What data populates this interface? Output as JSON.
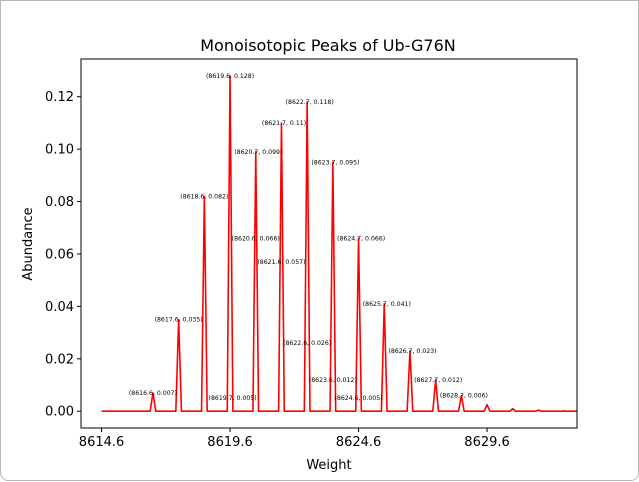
{
  "chart_data": {
    "type": "line",
    "title": "Monoisotopic Peaks of Ub-G76N",
    "xlabel": "Weight",
    "ylabel": "Abundance",
    "xlim": [
      8613.8,
      8633.1
    ],
    "ylim": [
      -0.0064,
      0.1344
    ],
    "x_ticks": [
      8614.6,
      8619.6,
      8624.6,
      8629.6
    ],
    "x_tick_labels": [
      "8614.6",
      "8619.6",
      "8624.6",
      "8629.6"
    ],
    "y_ticks": [
      0.0,
      0.02,
      0.04,
      0.06,
      0.08,
      0.1,
      0.12
    ],
    "y_tick_labels": [
      "0.00",
      "0.02",
      "0.04",
      "0.06",
      "0.08",
      "0.10",
      "0.12"
    ],
    "grid": false,
    "line_color": "#ff0000",
    "series": [
      {
        "x": [
          8616.6,
          8617.6,
          8618.6,
          8619.6,
          8620.6,
          8621.6,
          8622.6,
          8623.6,
          8624.6,
          8625.6,
          8626.6,
          8627.6,
          8628.6,
          8629.6,
          8630.6,
          8631.6,
          8632.6
        ],
        "values": [
          0.007,
          0.035,
          0.082,
          0.128,
          0.099,
          0.11,
          0.118,
          0.095,
          0.066,
          0.041,
          0.023,
          0.012,
          0.006,
          0.0025,
          0.001,
          0.0004,
          0.0001
        ]
      }
    ],
    "annotations": [
      {
        "text": "(8616.6, 0.007)",
        "x": 8616.6,
        "y": 0.007
      },
      {
        "text": "(8617.6, 0.035)",
        "x": 8617.6,
        "y": 0.035
      },
      {
        "text": "(8618.6, 0.082)",
        "x": 8618.6,
        "y": 0.082
      },
      {
        "text": "(8619.6, 0.128)",
        "x": 8619.6,
        "y": 0.128
      },
      {
        "text": "(8619.7, 0.005)",
        "x": 8619.7,
        "y": 0.005
      },
      {
        "text": "(8620.7, 0.099)",
        "x": 8620.7,
        "y": 0.099
      },
      {
        "text": "(8620.6, 0.066)",
        "x": 8620.6,
        "y": 0.066
      },
      {
        "text": "(8621.7, 0.11)",
        "x": 8621.7,
        "y": 0.11
      },
      {
        "text": "(8621.6, 0.057)",
        "x": 8621.6,
        "y": 0.057
      },
      {
        "text": "(8622.7, 0.118)",
        "x": 8622.7,
        "y": 0.118
      },
      {
        "text": "(8622.6, 0.026)",
        "x": 8622.6,
        "y": 0.026
      },
      {
        "text": "(8623.7, 0.095)",
        "x": 8623.7,
        "y": 0.095
      },
      {
        "text": "(8623.6, 0.012)",
        "x": 8623.6,
        "y": 0.012
      },
      {
        "text": "(8624.7, 0.066)",
        "x": 8624.7,
        "y": 0.066
      },
      {
        "text": "(8624.6, 0.005)",
        "x": 8624.6,
        "y": 0.005
      },
      {
        "text": "(8625.7, 0.041)",
        "x": 8625.7,
        "y": 0.041
      },
      {
        "text": "(8626.7, 0.023)",
        "x": 8626.7,
        "y": 0.023
      },
      {
        "text": "(8627.7, 0.012)",
        "x": 8627.7,
        "y": 0.012
      },
      {
        "text": "(8628.7, 0.006)",
        "x": 8628.7,
        "y": 0.006
      }
    ]
  }
}
